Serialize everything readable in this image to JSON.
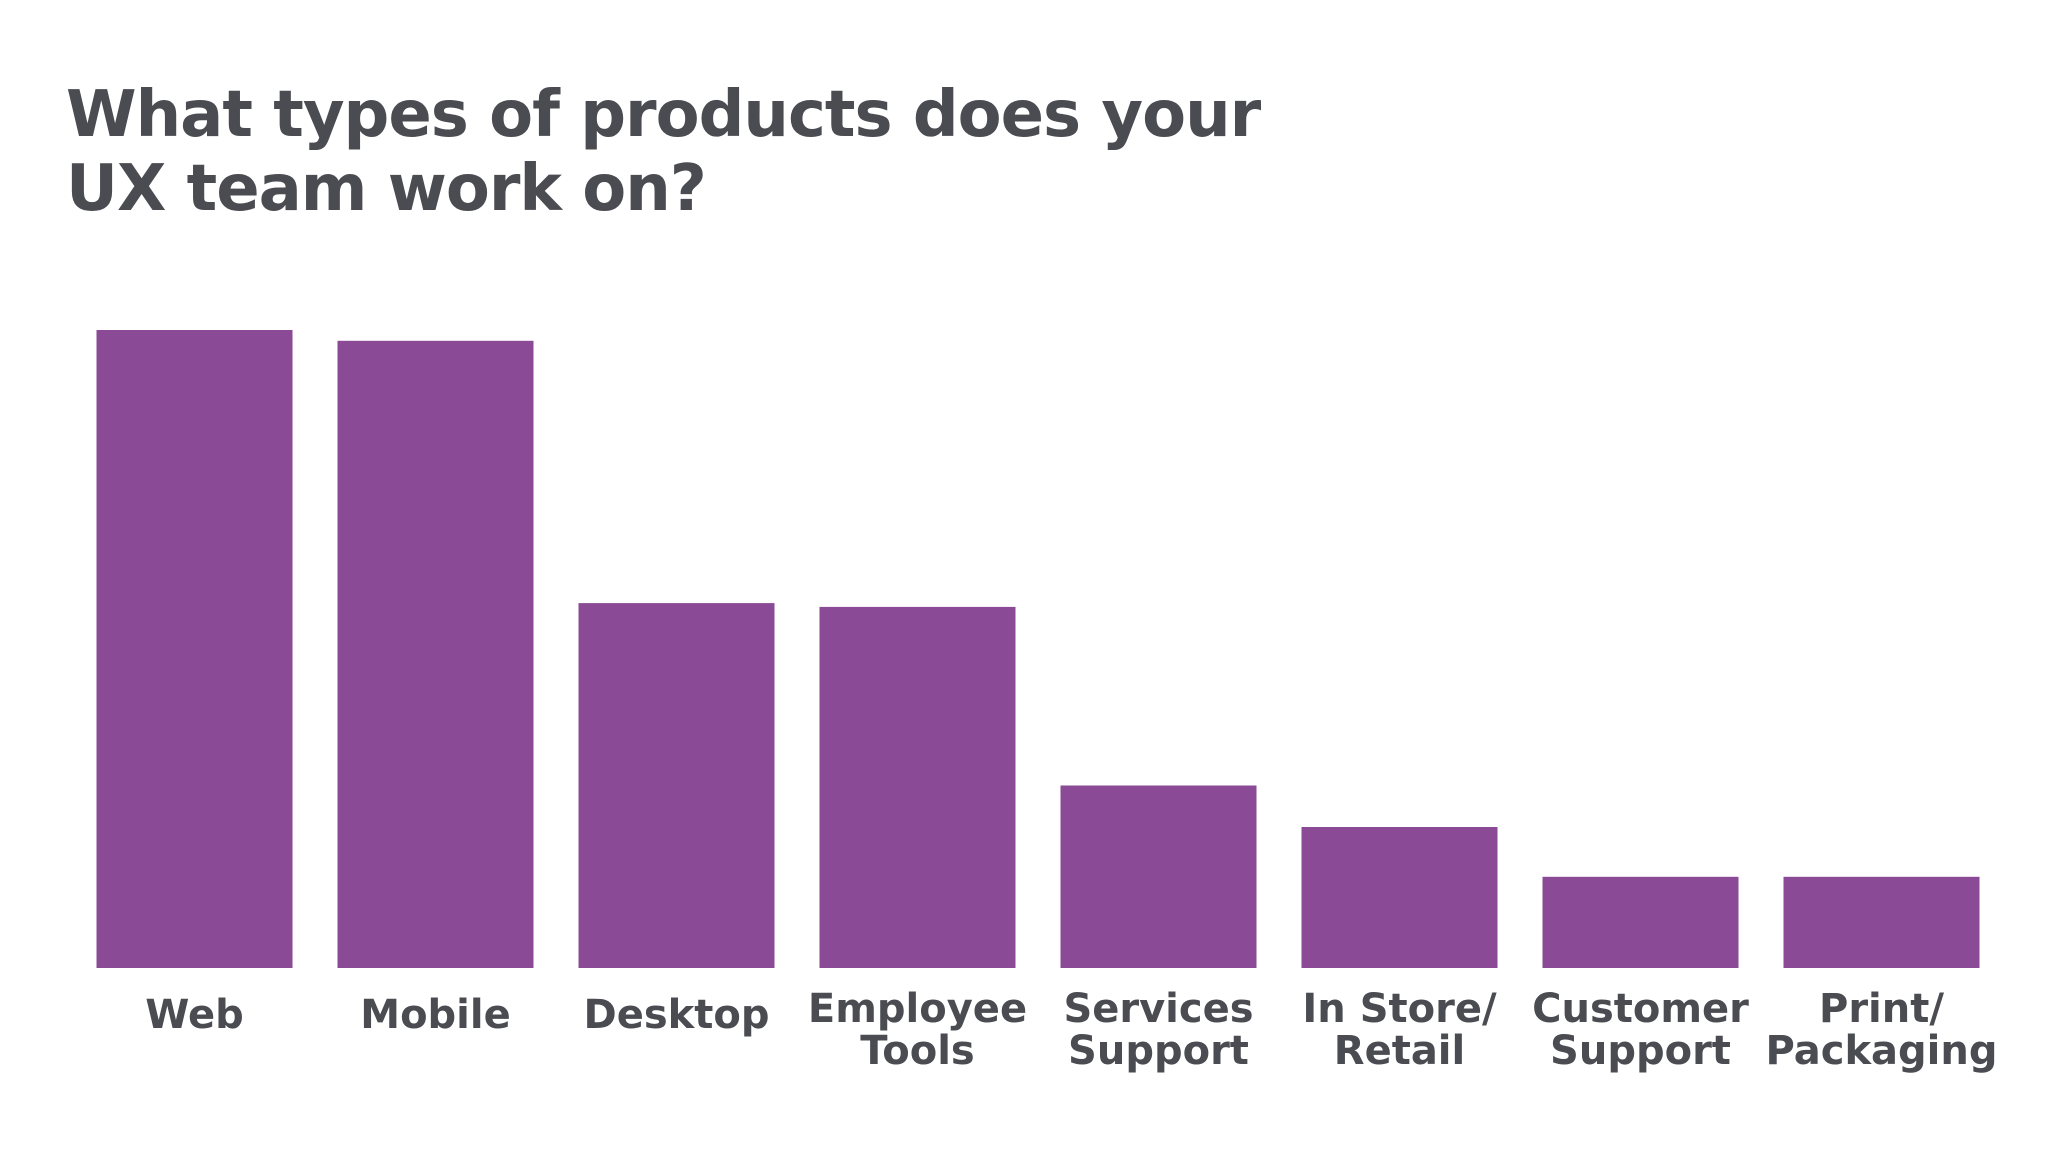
{
  "slide": {
    "title_lines": [
      "What types of products does your",
      "UX team work on?"
    ]
  },
  "colors": {
    "bar": "#8b4a95",
    "text": "#4a4c52",
    "background": "#ffffff"
  },
  "chart_data": {
    "type": "bar",
    "title": "What types of products does your UX team work on?",
    "categories": [
      [
        "Web"
      ],
      [
        "Mobile"
      ],
      [
        "Desktop"
      ],
      [
        "Employee",
        "Tools"
      ],
      [
        "Services",
        "Support"
      ],
      [
        "In Store/",
        "Retail"
      ],
      [
        "Customer",
        "Support"
      ],
      [
        "Print/",
        "Packaging"
      ]
    ],
    "values": [
      100,
      98.3,
      57.2,
      56.6,
      28.6,
      22.1,
      14.3,
      14.3
    ],
    "xlabel": "",
    "ylabel": "",
    "ylim": [
      0,
      100
    ],
    "grid": false,
    "legend": "none"
  }
}
